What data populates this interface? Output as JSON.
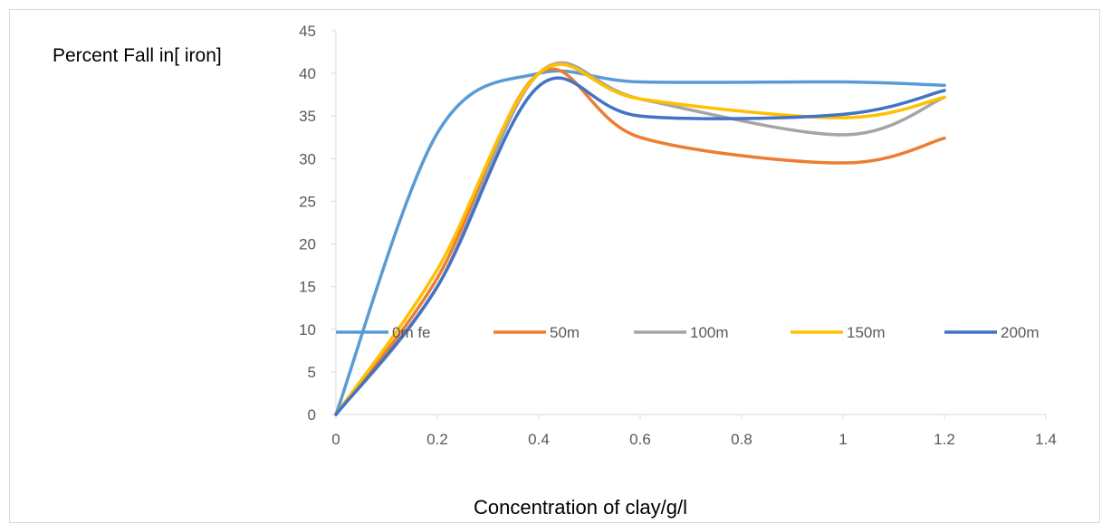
{
  "chart_data": {
    "type": "line",
    "title": "",
    "xlabel": "Concentration of clay/g/l",
    "ylabel": "Percent Fall in[ iron]",
    "xlim": [
      0,
      1.4
    ],
    "ylim": [
      0,
      45
    ],
    "xticks": [
      "0",
      "0.2",
      "0.4",
      "0.6",
      "0.8",
      "1",
      "1.2",
      "1.4"
    ],
    "yticks": [
      "0",
      "5",
      "10",
      "15",
      "20",
      "25",
      "30",
      "35",
      "40",
      "45"
    ],
    "grid": false,
    "legend_position": "inside-middle",
    "x": [
      0,
      0.2,
      0.4,
      0.6,
      1.0,
      1.2
    ],
    "series": [
      {
        "name": "0m fe",
        "color": "#5b9bd5",
        "values": [
          0,
          33,
          40,
          39,
          39,
          38.6
        ]
      },
      {
        "name": "50m",
        "color": "#ed7d31",
        "values": [
          0,
          16,
          40,
          32.5,
          29.5,
          32.4
        ]
      },
      {
        "name": "100m",
        "color": "#a5a5a5",
        "values": [
          0,
          15,
          40,
          37,
          32.8,
          37.2
        ]
      },
      {
        "name": "150m",
        "color": "#ffc000",
        "values": [
          0,
          17,
          40,
          37,
          34.8,
          37.2
        ]
      },
      {
        "name": "200m",
        "color": "#4472c4",
        "values": [
          0,
          15,
          38.5,
          35,
          35.2,
          38
        ]
      }
    ]
  }
}
